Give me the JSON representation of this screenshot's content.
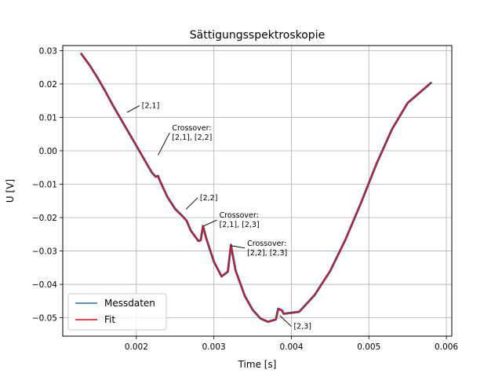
{
  "chart_data": {
    "type": "line",
    "title": "Sättigungsspektroskopie",
    "xlabel": "Time [s]",
    "ylabel": "U [V]",
    "xlim": [
      0.00105,
      0.00607
    ],
    "ylim": [
      -0.0555,
      0.0315
    ],
    "grid": true,
    "legend_position": "lower-left",
    "x_ticks": [
      {
        "value": 0.002,
        "label": "0.002"
      },
      {
        "value": 0.003,
        "label": "0.003"
      },
      {
        "value": 0.004,
        "label": "0.004"
      },
      {
        "value": 0.005,
        "label": "0.005"
      },
      {
        "value": 0.006,
        "label": "0.006"
      }
    ],
    "y_ticks": [
      {
        "value": 0.03,
        "label": "0.03"
      },
      {
        "value": 0.02,
        "label": "0.02"
      },
      {
        "value": 0.01,
        "label": "0.01"
      },
      {
        "value": 0.0,
        "label": "0.00"
      },
      {
        "value": -0.01,
        "label": "−0.01"
      },
      {
        "value": -0.02,
        "label": "−0.02"
      },
      {
        "value": -0.03,
        "label": "−0.03"
      },
      {
        "value": -0.04,
        "label": "−0.04"
      },
      {
        "value": -0.05,
        "label": "−0.05"
      }
    ],
    "series": [
      {
        "name": "Messdaten",
        "color": "#1f77b4",
        "x": [
          0.00129,
          0.0014,
          0.0015,
          0.0016,
          0.0017,
          0.0018,
          0.0019,
          0.002,
          0.0021,
          0.0022,
          0.00225,
          0.00228,
          0.0023,
          0.0024,
          0.0025,
          0.0026,
          0.00265,
          0.0027,
          0.0028,
          0.00283,
          0.00286,
          0.0029,
          0.003,
          0.0031,
          0.00318,
          0.00322,
          0.00328,
          0.0034,
          0.0035,
          0.0036,
          0.0037,
          0.0038,
          0.00383,
          0.00388,
          0.0039,
          0.0041,
          0.0043,
          0.0045,
          0.0047,
          0.0049,
          0.0051,
          0.0053,
          0.0055,
          0.0058
        ],
        "y": [
          0.029,
          0.0255,
          0.0218,
          0.0178,
          0.0135,
          0.0095,
          0.0055,
          0.0015,
          -0.0025,
          -0.0065,
          -0.0078,
          -0.0075,
          -0.0088,
          -0.0138,
          -0.0174,
          -0.0197,
          -0.021,
          -0.0238,
          -0.027,
          -0.0268,
          -0.0225,
          -0.0261,
          -0.0332,
          -0.0376,
          -0.0362,
          -0.0282,
          -0.0358,
          -0.0435,
          -0.0476,
          -0.0502,
          -0.0512,
          -0.0505,
          -0.0473,
          -0.0478,
          -0.0488,
          -0.0482,
          -0.0432,
          -0.036,
          -0.0265,
          -0.0155,
          -0.0038,
          0.0065,
          0.0143,
          0.0203
        ]
      },
      {
        "name": "Fit",
        "color": "#ff0000",
        "x": [
          0.00129,
          0.0014,
          0.0015,
          0.0016,
          0.0017,
          0.0018,
          0.0019,
          0.002,
          0.0021,
          0.0022,
          0.00225,
          0.00228,
          0.0023,
          0.0024,
          0.0025,
          0.0026,
          0.00265,
          0.0027,
          0.0028,
          0.00283,
          0.00286,
          0.0029,
          0.003,
          0.0031,
          0.00318,
          0.00322,
          0.00328,
          0.0034,
          0.0035,
          0.0036,
          0.0037,
          0.0038,
          0.00383,
          0.00388,
          0.0039,
          0.0041,
          0.0043,
          0.0045,
          0.0047,
          0.0049,
          0.0051,
          0.0053,
          0.0055,
          0.0058
        ],
        "y": [
          0.029,
          0.0255,
          0.0218,
          0.0178,
          0.0135,
          0.0095,
          0.0055,
          0.0015,
          -0.0025,
          -0.0065,
          -0.0078,
          -0.0075,
          -0.0088,
          -0.0138,
          -0.0174,
          -0.0197,
          -0.021,
          -0.0238,
          -0.027,
          -0.0268,
          -0.0225,
          -0.0261,
          -0.0332,
          -0.0376,
          -0.0362,
          -0.0282,
          -0.0358,
          -0.0435,
          -0.0476,
          -0.0502,
          -0.0512,
          -0.0505,
          -0.0473,
          -0.0478,
          -0.0488,
          -0.0482,
          -0.0432,
          -0.036,
          -0.0265,
          -0.0155,
          -0.0038,
          0.0065,
          0.0143,
          0.0203
        ]
      }
    ],
    "annotations": [
      {
        "lines": [
          "[2,1]"
        ],
        "point": [
          0.00188,
          0.0115
        ],
        "text_at": [
          0.00207,
          0.0135
        ],
        "anchor": "start"
      },
      {
        "lines": [
          "Crossover:",
          "[2,1], [2,2]"
        ],
        "point": [
          0.00228,
          -0.0013
        ],
        "text_at": [
          0.00246,
          0.0068
        ],
        "anchor": "start"
      },
      {
        "lines": [
          "[2,2]"
        ],
        "point": [
          0.00264,
          -0.0175
        ],
        "text_at": [
          0.00282,
          -0.0141
        ],
        "anchor": "start"
      },
      {
        "lines": [
          "Crossover:",
          "[2,1], [2,3]"
        ],
        "point": [
          0.00287,
          -0.0225
        ],
        "text_at": [
          0.00307,
          -0.0193
        ],
        "anchor": "start"
      },
      {
        "lines": [
          "Crossover:",
          "[2,2], [2,3]"
        ],
        "point": [
          0.00322,
          -0.0284
        ],
        "text_at": [
          0.00343,
          -0.0277
        ],
        "anchor": "start"
      },
      {
        "lines": [
          "[2,3]"
        ],
        "point": [
          0.00385,
          -0.0493
        ],
        "text_at": [
          0.00403,
          -0.0526
        ],
        "anchor": "start"
      }
    ]
  }
}
